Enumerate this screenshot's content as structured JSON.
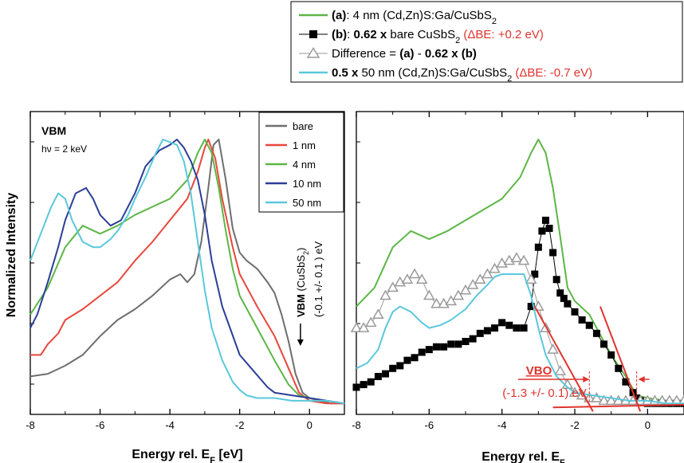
{
  "chart_data": [
    {
      "type": "line",
      "panel": "left",
      "xlabel": "Energy rel. E",
      "xlabel_sub": "F",
      "xlabel_unit": " [eV]",
      "ylabel": "Normalized Intensity",
      "xlim": [
        -8,
        1
      ],
      "xticks": [
        -8,
        -6,
        -4,
        -2,
        0
      ],
      "ylim": [
        0,
        1.08
      ],
      "panel_title": "VBM",
      "annotation_hv": "hν = 2 keV",
      "vbm_marker": {
        "x": -0.1,
        "label_bold": "VBM",
        "label_rest": " (CuSbS",
        "label_sub": "2",
        "label_end": ")",
        "label2": "(-0.1 +/- 0.1 ) eV"
      },
      "legend": {
        "placement": "top-right"
      },
      "series": [
        {
          "name": "bare",
          "color": "#6e6e6e",
          "x": [
            -8,
            -7.5,
            -7,
            -6.5,
            -6,
            -5.5,
            -5,
            -4.5,
            -4,
            -3.7,
            -3.5,
            -3.3,
            -3.1,
            -2.9,
            -2.75,
            -2.6,
            -2.4,
            -2.2,
            -2,
            -1.8,
            -1.5,
            -1.2,
            -1,
            -0.8,
            -0.6,
            -0.4,
            -0.2,
            0,
            0.3,
            0.6,
            1
          ],
          "y": [
            0.12,
            0.13,
            0.16,
            0.2,
            0.27,
            0.33,
            0.37,
            0.42,
            0.48,
            0.5,
            0.47,
            0.5,
            0.62,
            0.82,
            0.98,
            1.0,
            0.85,
            0.67,
            0.58,
            0.55,
            0.52,
            0.47,
            0.43,
            0.35,
            0.25,
            0.13,
            0.06,
            0.04,
            0.03,
            0.02,
            0.02
          ]
        },
        {
          "name": "1 nm",
          "color": "#e8473c",
          "x": [
            -8,
            -7.7,
            -7.5,
            -7.2,
            -7,
            -6.5,
            -6,
            -5.5,
            -5,
            -4.5,
            -4,
            -3.5,
            -3.2,
            -3,
            -2.9,
            -2.7,
            -2.5,
            -2.2,
            -2,
            -1.5,
            -1,
            -0.6,
            -0.3,
            0,
            0.5,
            1
          ],
          "y": [
            0.2,
            0.2,
            0.24,
            0.28,
            0.33,
            0.37,
            0.42,
            0.47,
            0.55,
            0.62,
            0.7,
            0.78,
            0.88,
            0.97,
            1.0,
            0.93,
            0.78,
            0.6,
            0.5,
            0.38,
            0.27,
            0.15,
            0.06,
            0.03,
            0.02,
            0.02
          ]
        },
        {
          "name": "4 nm",
          "color": "#5cb646",
          "x": [
            -8,
            -7.5,
            -7,
            -6.5,
            -6,
            -5.5,
            -5,
            -4.5,
            -4,
            -3.5,
            -3.2,
            -3,
            -2.8,
            -2.6,
            -2.4,
            -2.2,
            -2,
            -1.5,
            -1,
            -0.6,
            -0.3,
            0,
            0.5,
            1
          ],
          "y": [
            0.35,
            0.45,
            0.6,
            0.68,
            0.65,
            0.68,
            0.72,
            0.75,
            0.78,
            0.85,
            0.95,
            1.0,
            0.95,
            0.82,
            0.66,
            0.52,
            0.42,
            0.3,
            0.18,
            0.09,
            0.05,
            0.04,
            0.03,
            0.02
          ]
        },
        {
          "name": "10 nm",
          "color": "#2c3e97",
          "x": [
            -8,
            -7.8,
            -7.5,
            -7.2,
            -7,
            -6.7,
            -6.4,
            -6.2,
            -6,
            -5.7,
            -5.4,
            -5,
            -4.7,
            -4.3,
            -4,
            -3.8,
            -3.6,
            -3.4,
            -3.2,
            -3,
            -2.8,
            -2.5,
            -2,
            -1.6,
            -1.2,
            -1,
            -0.5,
            0,
            0.5,
            1
          ],
          "y": [
            0.3,
            0.35,
            0.47,
            0.6,
            0.7,
            0.8,
            0.82,
            0.78,
            0.72,
            0.68,
            0.7,
            0.8,
            0.9,
            0.96,
            0.98,
            1.0,
            0.97,
            0.92,
            0.85,
            0.72,
            0.55,
            0.38,
            0.2,
            0.14,
            0.08,
            0.06,
            0.05,
            0.04,
            0.03,
            0.02
          ]
        },
        {
          "name": "50 nm",
          "color": "#5ac8dc",
          "x": [
            -8,
            -7.7,
            -7.4,
            -7.2,
            -7,
            -6.8,
            -6.5,
            -6.2,
            -6,
            -5.7,
            -5.5,
            -5.2,
            -5,
            -4.7,
            -4.4,
            -4.2,
            -4,
            -3.8,
            -3.6,
            -3.4,
            -3.2,
            -3,
            -2.8,
            -2.5,
            -2.2,
            -2,
            -1.8,
            -1.5,
            -1,
            -0.5,
            0,
            0.5,
            1
          ],
          "y": [
            0.55,
            0.65,
            0.75,
            0.8,
            0.78,
            0.7,
            0.62,
            0.6,
            0.6,
            0.63,
            0.66,
            0.72,
            0.78,
            0.86,
            0.95,
            1.0,
            0.99,
            0.98,
            0.92,
            0.8,
            0.62,
            0.44,
            0.3,
            0.18,
            0.1,
            0.07,
            0.05,
            0.04,
            0.04,
            0.03,
            0.03,
            0.03,
            0.02
          ]
        }
      ]
    },
    {
      "type": "line",
      "panel": "right",
      "xlabel": "Energy rel. E",
      "xlabel_sub": "F",
      "xlim": [
        -8,
        1
      ],
      "xticks": [
        -8,
        -6,
        -4,
        -2,
        0
      ],
      "ylim": [
        0,
        1.08
      ],
      "vbo": {
        "label": "VBO",
        "value": "(-1.3 +/- 0.1) eV",
        "x1": -1.6,
        "x2": -0.3
      },
      "series": [
        {
          "key": "a",
          "color": "#5cb646",
          "marker": "none",
          "x": [
            -8,
            -7.5,
            -7,
            -6.5,
            -6,
            -5.5,
            -5,
            -4.5,
            -4,
            -3.5,
            -3.2,
            -3,
            -2.8,
            -2.6,
            -2.4,
            -2.2,
            -2,
            -1.6,
            -1.2,
            -1,
            -0.6,
            -0.3,
            0,
            0.5,
            1
          ],
          "y": [
            0.38,
            0.45,
            0.6,
            0.66,
            0.63,
            0.66,
            0.7,
            0.74,
            0.78,
            0.86,
            0.95,
            1.0,
            0.95,
            0.82,
            0.64,
            0.45,
            0.4,
            0.35,
            0.25,
            0.2,
            0.12,
            0.05,
            0.04,
            0.03,
            0.02
          ]
        },
        {
          "key": "b",
          "color": "#000000",
          "marker": "square",
          "x": [
            -8,
            -7.8,
            -7.6,
            -7.4,
            -7.2,
            -7,
            -6.8,
            -6.6,
            -6.4,
            -6.2,
            -6,
            -5.8,
            -5.6,
            -5.4,
            -5.2,
            -5,
            -4.8,
            -4.6,
            -4.4,
            -4.2,
            -4,
            -3.8,
            -3.6,
            -3.4,
            -3.2,
            -3.1,
            -3,
            -2.9,
            -2.8,
            -2.7,
            -2.6,
            -2.5,
            -2.4,
            -2.3,
            -2.2,
            -2.0,
            -1.8,
            -1.6,
            -1.4,
            -1.2,
            -1.0,
            -0.8,
            -0.6,
            -0.4,
            -0.3,
            -0.2,
            0,
            0.2,
            0.4,
            0.6,
            0.8,
            1
          ],
          "y": [
            0.08,
            0.09,
            0.1,
            0.12,
            0.13,
            0.15,
            0.16,
            0.18,
            0.19,
            0.21,
            0.22,
            0.23,
            0.23,
            0.24,
            0.24,
            0.25,
            0.26,
            0.28,
            0.29,
            0.3,
            0.32,
            0.31,
            0.3,
            0.3,
            0.38,
            0.5,
            0.6,
            0.66,
            0.7,
            0.67,
            0.58,
            0.48,
            0.43,
            0.41,
            0.39,
            0.36,
            0.33,
            0.31,
            0.28,
            0.24,
            0.2,
            0.15,
            0.1,
            0.06,
            0.04,
            0.03,
            0.02,
            0.02,
            0.02,
            0.02,
            0.02,
            0.02
          ]
        },
        {
          "key": "diff",
          "color": "#9a9a9a",
          "marker": "triangle",
          "x": [
            -8,
            -7.8,
            -7.6,
            -7.4,
            -7.2,
            -7,
            -6.8,
            -6.6,
            -6.4,
            -6.2,
            -6,
            -5.8,
            -5.6,
            -5.4,
            -5.2,
            -5,
            -4.8,
            -4.6,
            -4.4,
            -4.2,
            -4,
            -3.8,
            -3.6,
            -3.4,
            -3.2,
            -3.0,
            -2.8,
            -2.6,
            -2.4,
            -2.2,
            -2.0,
            -1.8,
            -1.6,
            -1.4,
            -1.2,
            -1.0,
            -0.8,
            -0.6,
            -0.4,
            -0.2,
            0,
            0.2,
            0.4,
            0.6,
            0.8,
            1
          ],
          "y": [
            0.3,
            0.3,
            0.32,
            0.35,
            0.42,
            0.45,
            0.47,
            0.48,
            0.5,
            0.48,
            0.42,
            0.39,
            0.39,
            0.4,
            0.42,
            0.44,
            0.46,
            0.48,
            0.5,
            0.52,
            0.54,
            0.55,
            0.56,
            0.55,
            0.48,
            0.38,
            0.3,
            0.22,
            0.14,
            0.09,
            0.06,
            0.05,
            0.04,
            0.04,
            0.03,
            0.03,
            0.03,
            0.03,
            0.03,
            0.03,
            0.03,
            0.03,
            0.03,
            0.03,
            0.03,
            0.03
          ]
        },
        {
          "key": "c",
          "color": "#5ac8dc",
          "marker": "none",
          "x": [
            -8,
            -7.7,
            -7.4,
            -7.2,
            -7,
            -6.8,
            -6.5,
            -6.2,
            -6,
            -5.7,
            -5.4,
            -5,
            -4.7,
            -4.4,
            -4.2,
            -4,
            -3.8,
            -3.6,
            -3.4,
            -3.2,
            -3,
            -2.8,
            -2.5,
            -2.2,
            -2,
            -1.5,
            -1,
            -0.5,
            0,
            0.5,
            1
          ],
          "y": [
            0.15,
            0.17,
            0.22,
            0.3,
            0.36,
            0.38,
            0.36,
            0.32,
            0.3,
            0.31,
            0.33,
            0.37,
            0.42,
            0.46,
            0.49,
            0.5,
            0.5,
            0.5,
            0.5,
            0.42,
            0.3,
            0.2,
            0.12,
            0.08,
            0.06,
            0.05,
            0.04,
            0.03,
            0.03,
            0.02,
            0.02
          ]
        }
      ]
    }
  ],
  "legend_top": [
    {
      "key": "a",
      "parts": [
        [
          "b",
          "(a)"
        ],
        [
          "n",
          ": 4 nm (Cd,Zn)S:Ga/CuSbS"
        ],
        [
          "sub",
          "2"
        ]
      ]
    },
    {
      "key": "b",
      "parts": [
        [
          "b",
          "(b)"
        ],
        [
          "n",
          ": "
        ],
        [
          "b",
          "0.62 x"
        ],
        [
          "n",
          " bare CuSbS"
        ],
        [
          "sub",
          "2"
        ],
        [
          "red",
          " (ΔBE: +0.2 eV)"
        ]
      ]
    },
    {
      "key": "diff",
      "parts": [
        [
          "n",
          "Difference = "
        ],
        [
          "b",
          "(a)"
        ],
        [
          "n",
          " - "
        ],
        [
          "b",
          "0.62 x (b)"
        ]
      ]
    },
    {
      "key": "c",
      "parts": [
        [
          "b",
          " 0.5 x"
        ],
        [
          "n",
          " 50 nm (Cd,Zn)S:Ga/CuSbS"
        ],
        [
          "sub",
          "2"
        ],
        [
          "red",
          " (ΔBE: -0.7 eV)"
        ]
      ]
    }
  ]
}
